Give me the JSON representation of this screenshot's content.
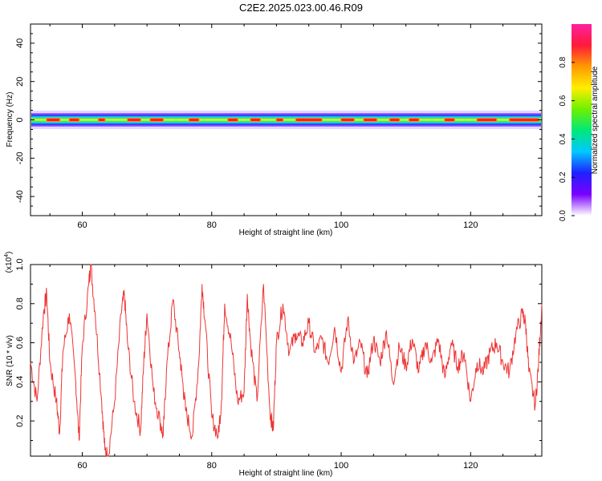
{
  "page": {
    "title": "C2E2.2025.023.00.46.R09"
  },
  "colorbar": {
    "label": "Normalized spectral amplitude",
    "range": [
      0,
      1
    ],
    "ticks": [
      0.0,
      0.2,
      0.4,
      0.6,
      0.8
    ],
    "tick_labels": [
      "0.0",
      "0.2",
      "0.4",
      "0.6",
      "0.8"
    ],
    "colormap": [
      "#ffffff",
      "#7a00ff",
      "#2020ff",
      "#00c8ff",
      "#00e87a",
      "#6ef000",
      "#ffee00",
      "#ff9a00",
      "#ff1a3a",
      "#ff20a0"
    ]
  },
  "chart_data": [
    {
      "type": "heatmap",
      "title": "",
      "xlabel": "Height of straight line (km)",
      "ylabel": "Frequency (Hz)",
      "xlim": [
        52,
        131
      ],
      "ylim": [
        -50,
        50
      ],
      "x_ticks": [
        60,
        80,
        100,
        120
      ],
      "x_tick_labels": [
        "60",
        "80",
        "100",
        "120"
      ],
      "y_ticks": [
        -40,
        -20,
        0,
        20,
        40
      ],
      "y_tick_labels": [
        "-40",
        "-20",
        "0",
        "20",
        "40"
      ],
      "band_center_hz": 0,
      "band_halfwidth_hz": 3,
      "peak_segments_km": [
        [
          54.5,
          56.5
        ],
        [
          58,
          59.5
        ],
        [
          62.5,
          63.5
        ],
        [
          67,
          69
        ],
        [
          70.5,
          72.5
        ],
        [
          76.5,
          78
        ],
        [
          82.5,
          84
        ],
        [
          86,
          87.5
        ],
        [
          90,
          91
        ],
        [
          93,
          97
        ],
        [
          100,
          102
        ],
        [
          103.5,
          105.5
        ],
        [
          107.5,
          109
        ],
        [
          110.5,
          112
        ],
        [
          116,
          117.5
        ],
        [
          121,
          124
        ],
        [
          126,
          130.5
        ]
      ]
    },
    {
      "type": "line",
      "title": "",
      "xlabel": "Height of straight line (km)",
      "ylabel": "SNR (10 * v/v)",
      "y_multiplier": "(x10^4)",
      "xlim": [
        52,
        131
      ],
      "ylim": [
        0.02,
        1.0
      ],
      "x_ticks": [
        60,
        80,
        100,
        120
      ],
      "x_tick_labels": [
        "60",
        "80",
        "100",
        "120"
      ],
      "y_ticks": [
        0.2,
        0.4,
        0.6,
        0.8,
        1.0
      ],
      "y_tick_labels": [
        "0.2",
        "0.4",
        "0.6",
        "0.8",
        "1.0"
      ],
      "series": [
        {
          "color": "#ee3333",
          "x": [
            52,
            53,
            54,
            54.5,
            55,
            56,
            56.5,
            57,
            58,
            59,
            59.5,
            60,
            61,
            61.3,
            62,
            63,
            63.5,
            64,
            65,
            66,
            66.5,
            67,
            68,
            69,
            69.5,
            70,
            71,
            72,
            72.5,
            73,
            74,
            75,
            75.5,
            76,
            77,
            78,
            78.5,
            79,
            80,
            81,
            81.5,
            82,
            83,
            84,
            85,
            85.5,
            86,
            87,
            88,
            89,
            89.5,
            90,
            91,
            92,
            93,
            94,
            95,
            96,
            97,
            98,
            99,
            100,
            101,
            102,
            103,
            104,
            105,
            106,
            107,
            108,
            109,
            110,
            111,
            112,
            113,
            114,
            115,
            116,
            117,
            118,
            119,
            120,
            121,
            122,
            123,
            124,
            125,
            126,
            127,
            128,
            128.5,
            129,
            130,
            130.5,
            131
          ],
          "y": [
            0.5,
            0.3,
            0.75,
            0.85,
            0.5,
            0.3,
            0.14,
            0.55,
            0.75,
            0.4,
            0.1,
            0.58,
            0.9,
            1.0,
            0.75,
            0.3,
            0.05,
            0.02,
            0.3,
            0.75,
            0.85,
            0.6,
            0.3,
            0.15,
            0.5,
            0.75,
            0.35,
            0.2,
            0.12,
            0.45,
            0.82,
            0.55,
            0.4,
            0.25,
            0.12,
            0.5,
            0.9,
            0.7,
            0.22,
            0.12,
            0.3,
            0.8,
            0.6,
            0.3,
            0.35,
            0.85,
            0.6,
            0.3,
            0.9,
            0.25,
            0.15,
            0.6,
            0.8,
            0.55,
            0.65,
            0.6,
            0.7,
            0.55,
            0.62,
            0.5,
            0.68,
            0.45,
            0.72,
            0.5,
            0.6,
            0.42,
            0.62,
            0.5,
            0.66,
            0.4,
            0.58,
            0.48,
            0.62,
            0.45,
            0.6,
            0.5,
            0.62,
            0.42,
            0.6,
            0.48,
            0.55,
            0.3,
            0.5,
            0.45,
            0.55,
            0.6,
            0.5,
            0.45,
            0.65,
            0.75,
            0.7,
            0.45,
            0.28,
            0.5,
            0.8
          ]
        }
      ]
    }
  ]
}
